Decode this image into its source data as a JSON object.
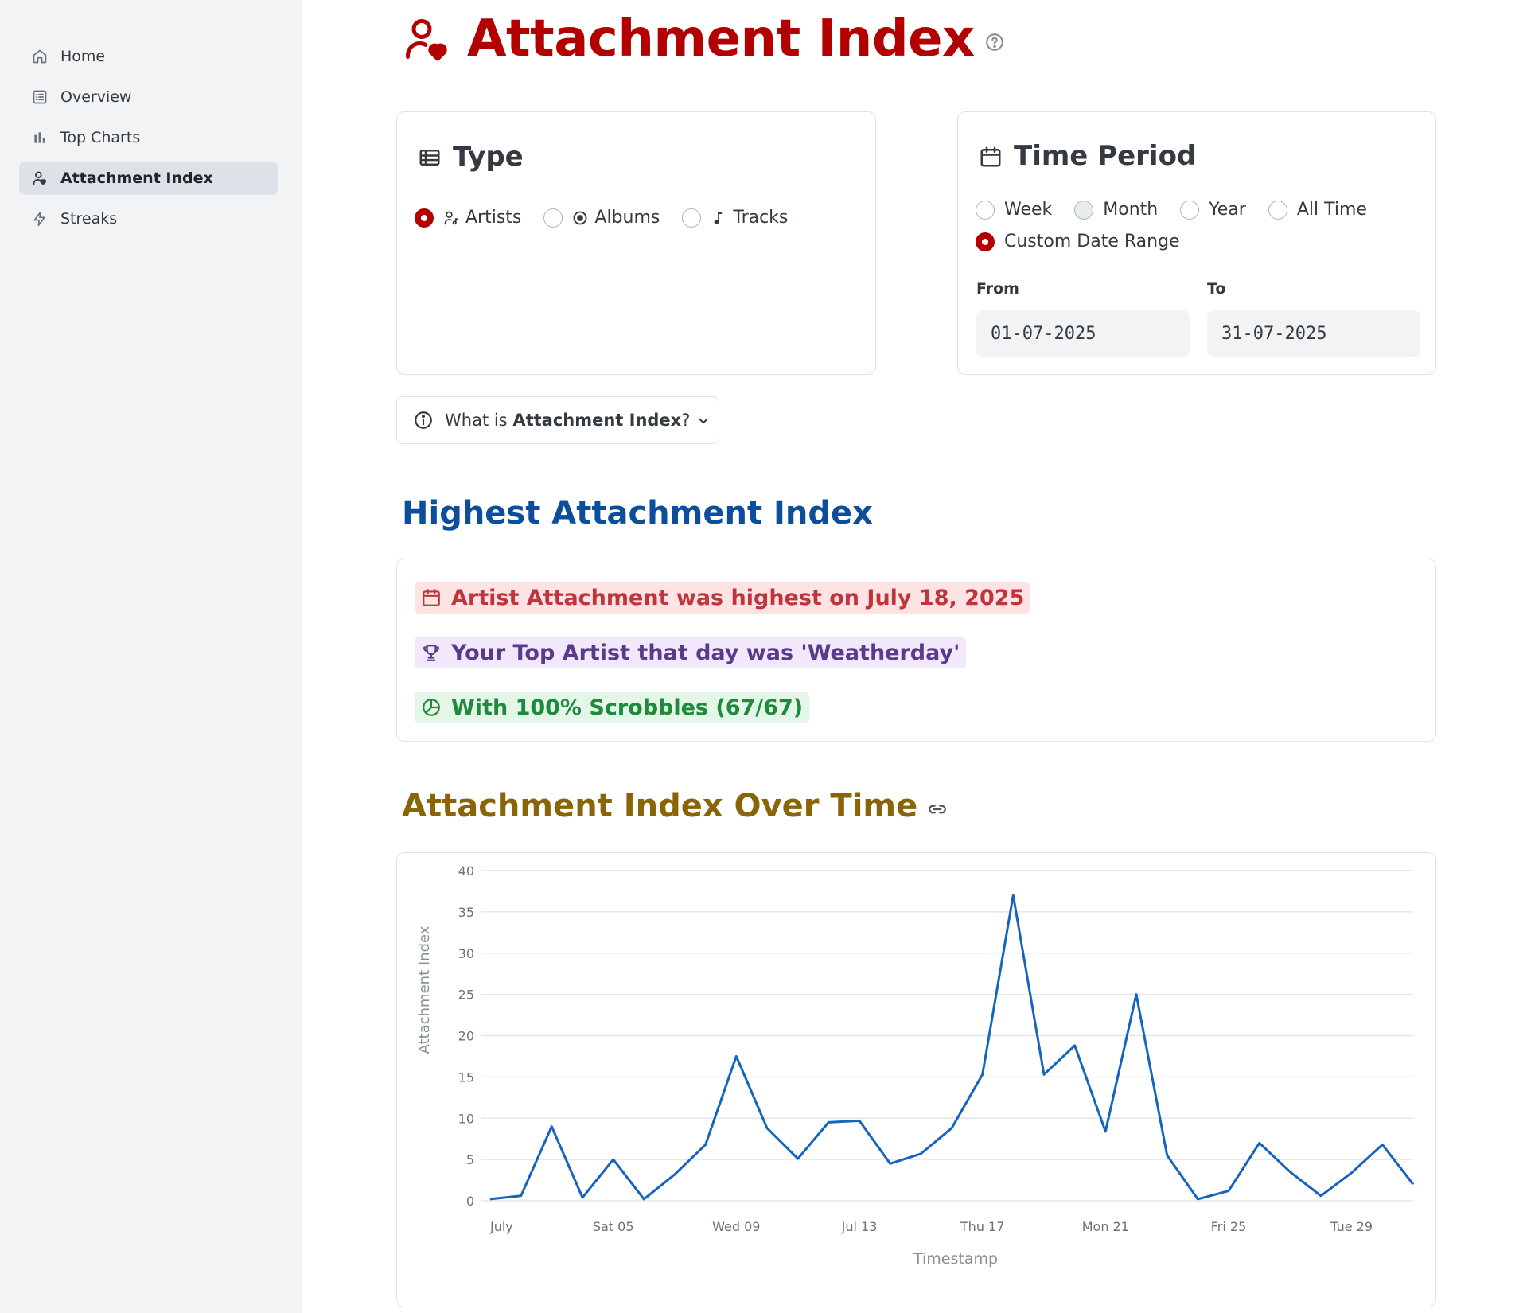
{
  "sidebar": {
    "items": [
      {
        "label": "Home",
        "icon": "home-icon"
      },
      {
        "label": "Overview",
        "icon": "list-icon"
      },
      {
        "label": "Top Charts",
        "icon": "bar-chart-icon"
      },
      {
        "label": "Attachment Index",
        "icon": "user-heart-icon",
        "active": true
      },
      {
        "label": "Streaks",
        "icon": "bolt-icon"
      }
    ]
  },
  "header": {
    "title": "Attachment Index"
  },
  "type_card": {
    "title": "Type",
    "options": [
      "Artists",
      "Albums",
      "Tracks"
    ],
    "selected": "Artists"
  },
  "time_card": {
    "title": "Time Period",
    "options": [
      "Week",
      "Month",
      "Year",
      "All Time",
      "Custom Date Range"
    ],
    "selected": "Custom Date Range",
    "from_label": "From",
    "to_label": "To",
    "from_value": "01-07-2025",
    "to_value": "31-07-2025"
  },
  "info_button": {
    "prefix": "What is ",
    "bold": "Attachment Index",
    "suffix": "?"
  },
  "highest": {
    "title": "Highest Attachment Index",
    "line1": "Artist Attachment was highest on July 18, 2025",
    "line2": "Your Top Artist that day was 'Weatherday'",
    "line3": "With 100% Scrobbles (67/67)"
  },
  "over_time": {
    "title": "Attachment Index Over Time"
  },
  "colors": {
    "accent": "#b30000",
    "blue_title": "#0b4f9c",
    "gold_title": "#8a6508",
    "line": "#1565c0"
  },
  "chart_data": {
    "type": "line",
    "xlabel": "Timestamp",
    "ylabel": "Attachment Index",
    "ylim": [
      0,
      40
    ],
    "yticks": [
      0,
      5,
      10,
      15,
      20,
      25,
      30,
      35,
      40
    ],
    "xtick_labels": [
      {
        "day": 1,
        "label": "July"
      },
      {
        "day": 5,
        "label": "Sat 05"
      },
      {
        "day": 9,
        "label": "Wed 09"
      },
      {
        "day": 13,
        "label": "Jul 13"
      },
      {
        "day": 17,
        "label": "Thu 17"
      },
      {
        "day": 21,
        "label": "Mon 21"
      },
      {
        "day": 25,
        "label": "Fri 25"
      },
      {
        "day": 29,
        "label": "Tue 29"
      }
    ],
    "x": [
      1,
      2,
      3,
      4,
      5,
      6,
      7,
      8,
      9,
      10,
      11,
      12,
      13,
      14,
      15,
      16,
      17,
      18,
      19,
      20,
      21,
      22,
      23,
      24,
      25,
      26,
      27,
      28,
      29,
      30,
      31
    ],
    "values": [
      0.2,
      0.6,
      9,
      0.4,
      5,
      0.2,
      3.2,
      6.8,
      17.5,
      8.8,
      5.1,
      9.5,
      9.7,
      4.5,
      5.7,
      8.8,
      15.3,
      37,
      15.3,
      18.8,
      8.4,
      25,
      5.5,
      0.2,
      1.2,
      7,
      3.5,
      0.6,
      3.4,
      6.8,
      2
    ]
  }
}
